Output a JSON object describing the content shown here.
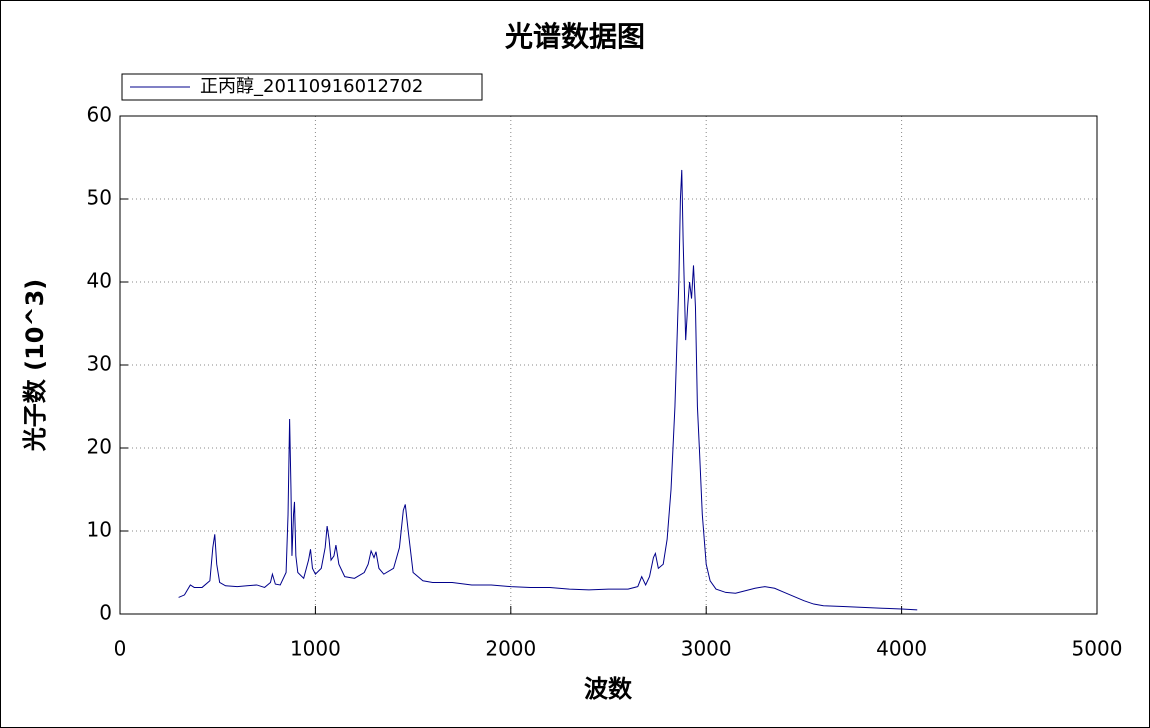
{
  "chart_data": {
    "type": "line",
    "title": "光谱数据图",
    "x_label": "波数",
    "y_label": "光子数 (10^3)",
    "x": [
      300,
      330,
      360,
      380,
      420,
      460,
      475,
      485,
      495,
      510,
      540,
      600,
      650,
      700,
      740,
      770,
      780,
      795,
      820,
      850,
      860,
      868,
      875,
      880,
      888,
      893,
      900,
      910,
      940,
      965,
      975,
      985,
      1000,
      1030,
      1050,
      1060,
      1070,
      1080,
      1095,
      1105,
      1120,
      1150,
      1200,
      1250,
      1270,
      1285,
      1300,
      1310,
      1325,
      1350,
      1400,
      1430,
      1450,
      1460,
      1475,
      1500,
      1550,
      1600,
      1700,
      1800,
      1900,
      2000,
      2100,
      2200,
      2300,
      2400,
      2500,
      2600,
      2650,
      2670,
      2690,
      2710,
      2730,
      2740,
      2755,
      2780,
      2800,
      2820,
      2840,
      2860,
      2868,
      2875,
      2882,
      2895,
      2905,
      2915,
      2925,
      2935,
      2945,
      2955,
      2965,
      2980,
      3000,
      3020,
      3050,
      3100,
      3150,
      3200,
      3250,
      3300,
      3350,
      3400,
      3450,
      3500,
      3550,
      3600,
      3700,
      3800,
      3900,
      4000,
      4080
    ],
    "series": [
      {
        "name": "正丙醇_20110916012702",
        "color": "#00008b",
        "values": [
          2.0,
          2.3,
          3.5,
          3.2,
          3.2,
          4,
          8,
          9.6,
          6,
          3.8,
          3.4,
          3.3,
          3.4,
          3.5,
          3.2,
          3.8,
          4.8,
          3.6,
          3.5,
          5,
          12,
          23.5,
          15,
          7,
          12,
          13.5,
          7,
          5,
          4.3,
          6.5,
          7.8,
          5.5,
          4.8,
          5.5,
          8,
          10.6,
          9,
          6.5,
          7,
          8.3,
          6,
          4.5,
          4.3,
          5,
          6,
          7.6,
          6.8,
          7.5,
          5.5,
          4.8,
          5.5,
          8,
          12.5,
          13.2,
          10,
          5,
          4,
          3.8,
          3.8,
          3.5,
          3.5,
          3.3,
          3.2,
          3.2,
          3.0,
          2.9,
          3.0,
          3.0,
          3.3,
          4.5,
          3.5,
          4.5,
          6.8,
          7.3,
          5.5,
          6,
          9,
          15,
          25,
          40,
          50,
          53.5,
          45,
          33,
          37,
          40,
          38,
          42,
          37,
          25,
          20,
          12,
          6,
          4,
          3,
          2.6,
          2.5,
          2.8,
          3.1,
          3.3,
          3.1,
          2.6,
          2.1,
          1.6,
          1.2,
          1.0,
          0.9,
          0.8,
          0.7,
          0.6,
          0.5
        ]
      }
    ],
    "xlim": [
      0,
      5000
    ],
    "xticks": [
      0,
      1000,
      2000,
      3000,
      4000,
      5000
    ],
    "ylim": [
      0,
      60
    ],
    "yticks": [
      0,
      10,
      20,
      30,
      40,
      50,
      60
    ],
    "grid": true,
    "legend": "top-left"
  }
}
